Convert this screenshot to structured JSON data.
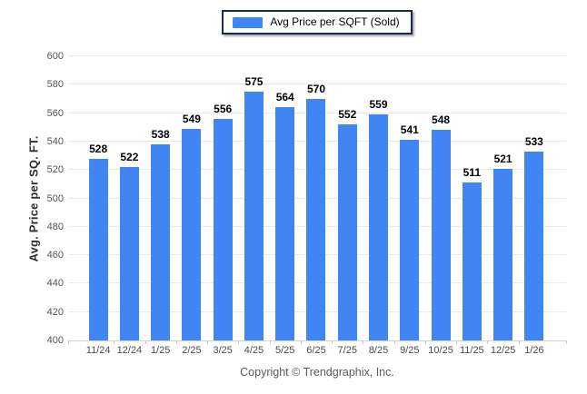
{
  "legend": {
    "label": "Avg Price per SQFT (Sold)",
    "swatch_color": "#4184F3"
  },
  "y_axis": {
    "title": "Avg. Price per SQ. FT."
  },
  "footer": {
    "text": "Copyright © Trendgraphix, Inc."
  },
  "colors": {
    "bar": "#4184F3",
    "gridline": "#eaeaea",
    "baseline": "#d2d2d2",
    "legend_border": "#1c2b4a"
  },
  "chart_data": {
    "type": "bar",
    "title": "",
    "series_name": "Avg Price per SQFT (Sold)",
    "categories": [
      "11/24",
      "12/24",
      "1/25",
      "2/25",
      "3/25",
      "4/25",
      "5/25",
      "6/25",
      "7/25",
      "8/25",
      "9/25",
      "10/25",
      "11/25",
      "12/25",
      "1/26"
    ],
    "values": [
      528,
      522,
      538,
      549,
      556,
      575,
      564,
      570,
      552,
      559,
      541,
      548,
      511,
      521,
      533
    ],
    "value_labels": true,
    "xlabel": "",
    "ylabel": "Avg. Price per SQ. FT.",
    "ylim": [
      400,
      600
    ],
    "yticks": [
      400,
      420,
      440,
      460,
      480,
      500,
      520,
      540,
      560,
      580,
      600
    ],
    "grid": "horizontal",
    "legend_position": "top-center",
    "bar_color": "#4184F3"
  }
}
